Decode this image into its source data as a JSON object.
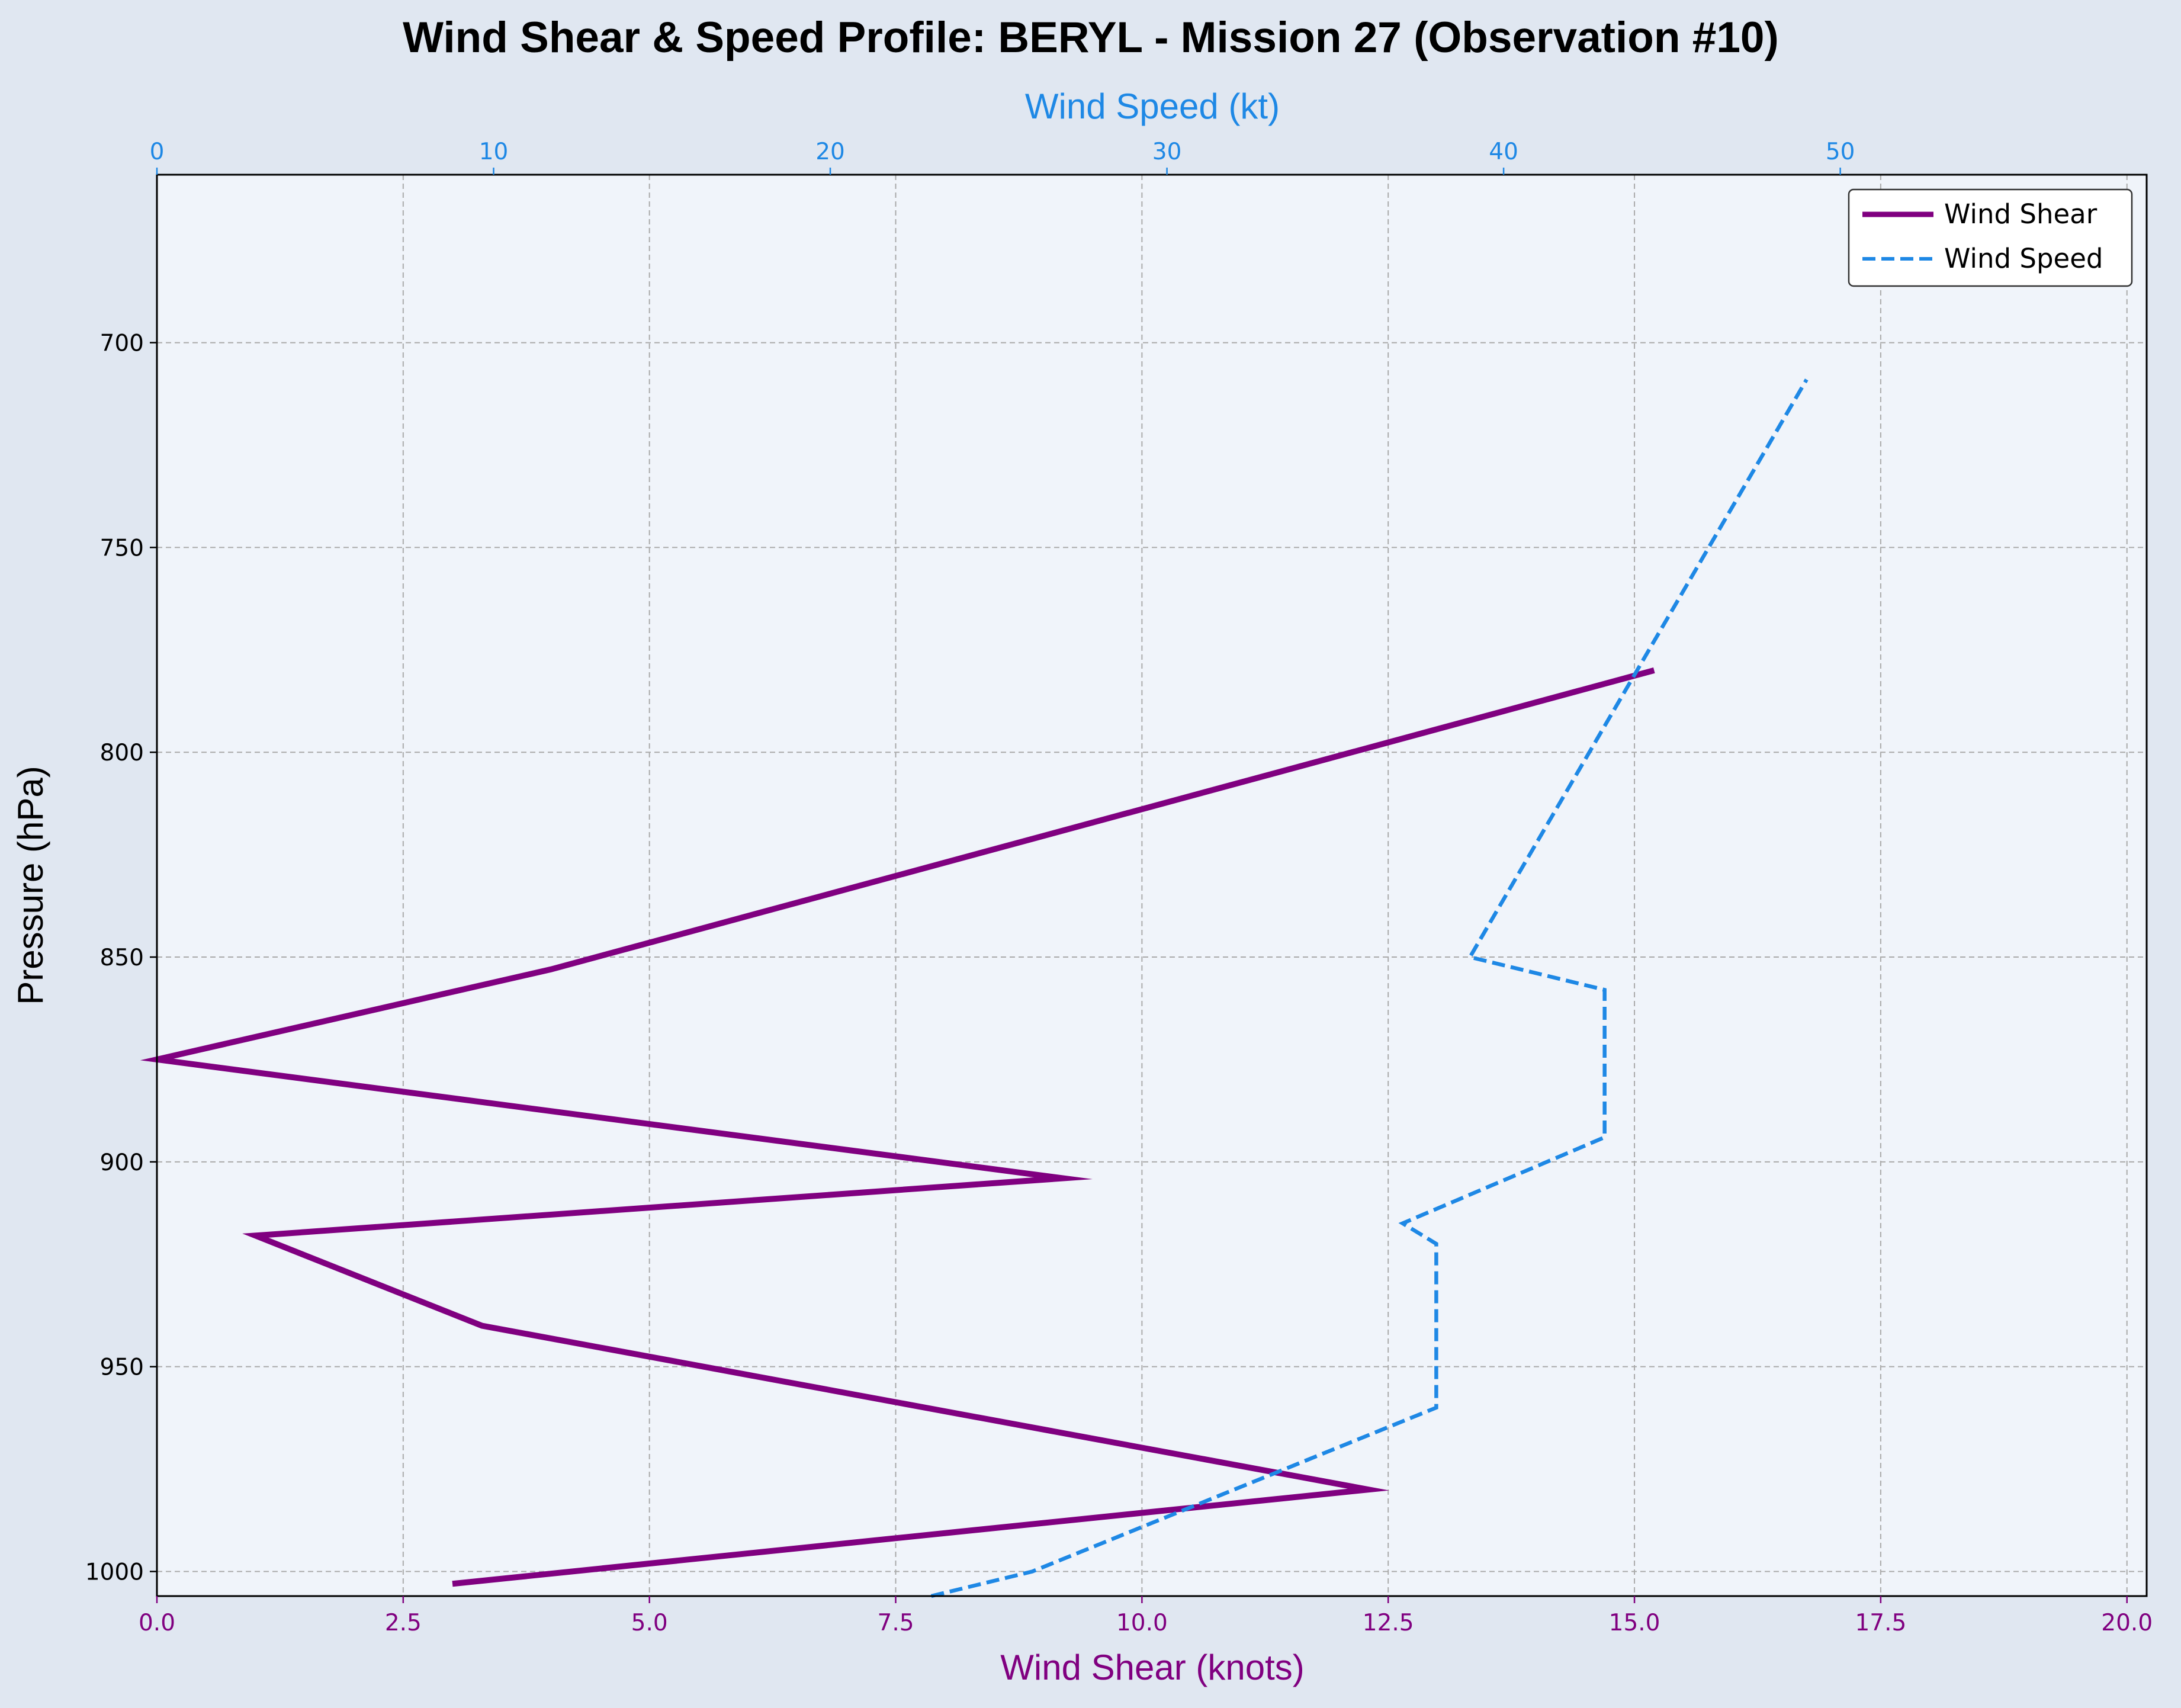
{
  "chart_data": {
    "type": "line",
    "title": "Wind Shear & Speed Profile: BERYL - Mission 27 (Observation #10)",
    "xlabel_bottom": "Wind Shear (knots)",
    "xlabel_top": "Wind Speed (kt)",
    "ylabel": "Pressure (hPa)",
    "y_inverted": true,
    "ylim": [
      1006,
      659
    ],
    "xlim_bottom": [
      0,
      20.2
    ],
    "xlim_top": [
      0,
      59.1
    ],
    "yticks": [
      700,
      750,
      800,
      850,
      900,
      950,
      1000
    ],
    "xticks_bottom": [
      "0.0",
      "2.5",
      "5.0",
      "7.5",
      "10.0",
      "12.5",
      "15.0",
      "17.5",
      "20.0"
    ],
    "xticks_bottom_values": [
      0,
      2.5,
      5,
      7.5,
      10,
      12.5,
      15,
      17.5,
      20
    ],
    "xticks_top": [
      0,
      10,
      20,
      30,
      40,
      50
    ],
    "grid": true,
    "legend_position": "top-right",
    "colors": {
      "shear": "#800080",
      "speed": "#1e88e5",
      "plot_bg": "#f0f4fa",
      "figure_bg": "#e0e7f1",
      "grid": "#aaaaaa"
    },
    "series": [
      {
        "name": "Wind Shear",
        "axis": "bottom",
        "style": "solid",
        "points": [
          [
            3.0,
            1003
          ],
          [
            12.3,
            980
          ],
          [
            3.3,
            940
          ],
          [
            1.0,
            918
          ],
          [
            9.2,
            904
          ],
          [
            0.0,
            875
          ],
          [
            4.0,
            853
          ],
          [
            15.2,
            780
          ]
        ]
      },
      {
        "name": "Wind Speed",
        "axis": "top",
        "style": "dashed",
        "points": [
          [
            23.0,
            1006
          ],
          [
            26.0,
            1000
          ],
          [
            38.0,
            960
          ],
          [
            38.0,
            920
          ],
          [
            37.0,
            915
          ],
          [
            43.0,
            894
          ],
          [
            43.0,
            858
          ],
          [
            39.0,
            850
          ],
          [
            49.0,
            709
          ]
        ]
      }
    ]
  }
}
